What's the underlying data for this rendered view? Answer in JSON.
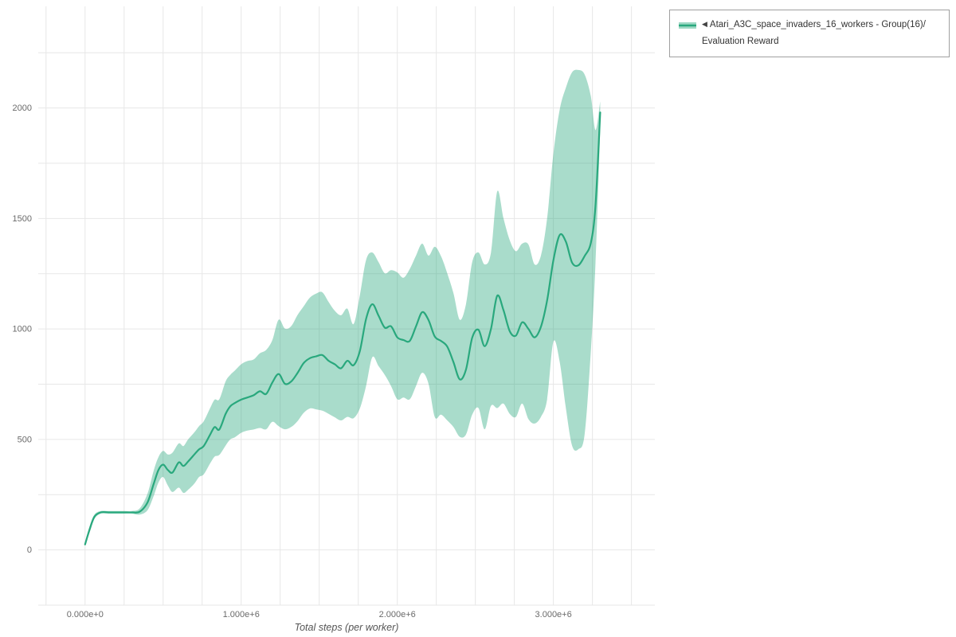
{
  "page": {
    "background": "#ffffff"
  },
  "legend": {
    "collapse_icon": "◀",
    "line1": "Atari_A3C_space_invaders_16_workers - Group(16)/",
    "line2": "Evaluation Reward",
    "border_color": "#a0a0a0"
  },
  "chart_data": {
    "type": "line",
    "title": "",
    "xlabel": "Total steps (per worker)",
    "ylabel": "",
    "legend_position": "top-right",
    "grid": "on",
    "series_name": "Atari_A3C_space_invaders_16_workers - Group(16)/Evaluation Reward",
    "line_color": "#29a87d",
    "band_color": "#29a87d",
    "band_opacity": 0.4,
    "grid_color": "#e7e7e7",
    "tick_color": "#6a6a6a",
    "xlim": [
      -300000,
      3650000
    ],
    "ylim": [
      -250,
      2460
    ],
    "grid_x_step": 250000,
    "grid_y_step": 250,
    "x_ticks": [
      0,
      1000000,
      2000000,
      3000000
    ],
    "x_tick_labels": [
      "0.000e+0",
      "1.000e+6",
      "2.000e+6",
      "3.000e+6"
    ],
    "y_ticks": [
      0,
      500,
      1000,
      1500,
      2000
    ],
    "y_tick_labels": [
      "0",
      "500",
      "1000",
      "1500",
      "2000"
    ],
    "x": [
      0,
      30000,
      60000,
      100000,
      150000,
      200000,
      250000,
      300000,
      350000,
      400000,
      440000,
      470000,
      500000,
      530000,
      560000,
      600000,
      630000,
      660000,
      700000,
      730000,
      760000,
      800000,
      830000,
      860000,
      900000,
      930000,
      960000,
      1000000,
      1040000,
      1080000,
      1120000,
      1160000,
      1200000,
      1240000,
      1280000,
      1320000,
      1360000,
      1400000,
      1440000,
      1480000,
      1520000,
      1560000,
      1600000,
      1640000,
      1680000,
      1720000,
      1760000,
      1800000,
      1840000,
      1880000,
      1920000,
      1960000,
      2000000,
      2040000,
      2080000,
      2120000,
      2160000,
      2200000,
      2240000,
      2280000,
      2320000,
      2360000,
      2400000,
      2440000,
      2480000,
      2520000,
      2560000,
      2600000,
      2640000,
      2680000,
      2720000,
      2760000,
      2800000,
      2840000,
      2880000,
      2920000,
      2960000,
      3000000,
      3040000,
      3080000,
      3120000,
      3160000,
      3200000,
      3240000,
      3270000,
      3300000
    ],
    "mean": [
      25,
      95,
      150,
      170,
      170,
      170,
      170,
      170,
      173,
      215,
      300,
      362,
      386,
      362,
      350,
      396,
      380,
      400,
      432,
      455,
      470,
      520,
      556,
      545,
      615,
      650,
      665,
      680,
      690,
      700,
      718,
      706,
      758,
      796,
      752,
      762,
      800,
      845,
      868,
      876,
      882,
      856,
      840,
      822,
      856,
      836,
      900,
      1045,
      1112,
      1060,
      1006,
      1012,
      962,
      950,
      946,
      1012,
      1076,
      1040,
      966,
      946,
      920,
      850,
      772,
      816,
      960,
      996,
      922,
      1000,
      1150,
      1086,
      990,
      970,
      1030,
      1000,
      962,
      1010,
      1130,
      1310,
      1425,
      1395,
      1300,
      1288,
      1330,
      1390,
      1560,
      1980
    ],
    "lower": [
      18,
      80,
      140,
      164,
      164,
      164,
      164,
      164,
      160,
      180,
      245,
      305,
      330,
      292,
      262,
      282,
      258,
      272,
      300,
      330,
      342,
      390,
      422,
      430,
      472,
      500,
      510,
      530,
      540,
      545,
      552,
      546,
      580,
      560,
      546,
      556,
      582,
      620,
      640,
      636,
      630,
      616,
      600,
      586,
      602,
      596,
      640,
      742,
      872,
      832,
      792,
      742,
      682,
      690,
      682,
      742,
      802,
      752,
      602,
      612,
      586,
      556,
      512,
      522,
      612,
      642,
      546,
      652,
      642,
      662,
      616,
      602,
      662,
      592,
      572,
      602,
      682,
      942,
      852,
      642,
      472,
      456,
      522,
      902,
      1300,
      1900
    ],
    "upper": [
      32,
      110,
      160,
      176,
      176,
      176,
      176,
      176,
      188,
      255,
      360,
      420,
      448,
      432,
      440,
      482,
      470,
      500,
      532,
      560,
      582,
      640,
      680,
      682,
      762,
      792,
      812,
      840,
      855,
      862,
      890,
      905,
      950,
      1042,
      1002,
      1012,
      1062,
      1102,
      1142,
      1160,
      1166,
      1122,
      1082,
      1062,
      1092,
      1022,
      1152,
      1312,
      1346,
      1302,
      1252,
      1266,
      1256,
      1232,
      1272,
      1332,
      1386,
      1332,
      1372,
      1330,
      1252,
      1162,
      1042,
      1112,
      1302,
      1346,
      1292,
      1346,
      1622,
      1502,
      1402,
      1352,
      1386,
      1382,
      1292,
      1332,
      1502,
      1792,
      1992,
      2092,
      2162,
      2172,
      2152,
      2052,
      1900,
      2030
    ]
  }
}
